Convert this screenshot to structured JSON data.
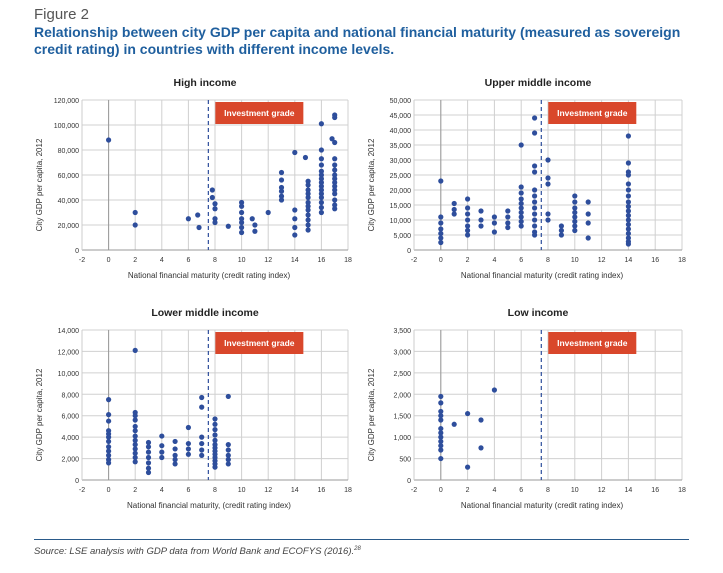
{
  "figure_label": "Figure 2",
  "title": "Relationship between city GDP per capita and national financial maturity (measured as sovereign credit rating) in countries with different income levels.",
  "source": "Source: LSE analysis with GDP data from World Bank and ECOFYS (2016).",
  "source_note": "28",
  "colors": {
    "point": "#2e4e9c",
    "grid": "#d0d0d0",
    "badge": "#d9472b",
    "dash": "#2e4e9c"
  },
  "chart_data": [
    {
      "type": "scatter",
      "title": "High income",
      "xlabel": "National financial maturity (credit rating index)",
      "ylabel": "City GDP per capita, 2012",
      "xlim": [
        -2,
        18
      ],
      "ylim": [
        0,
        120000
      ],
      "xticks": [
        -2,
        0,
        2,
        4,
        6,
        8,
        10,
        12,
        14,
        16,
        18
      ],
      "yticks": [
        "0",
        "20,000",
        "40,000",
        "60,000",
        "80,000",
        "100,000",
        "120,000"
      ],
      "ytick_values": [
        0,
        20000,
        40000,
        60000,
        80000,
        100000,
        120000
      ],
      "threshold_x": 7.5,
      "threshold_label": "Investment grade",
      "points": [
        [
          0,
          88000
        ],
        [
          2,
          30000
        ],
        [
          2,
          20000
        ],
        [
          6,
          25000
        ],
        [
          6.7,
          28000
        ],
        [
          6.8,
          18000
        ],
        [
          7.8,
          48000
        ],
        [
          7.8,
          42000
        ],
        [
          8,
          37000
        ],
        [
          8,
          33000
        ],
        [
          8,
          25000
        ],
        [
          8,
          22000
        ],
        [
          9,
          19000
        ],
        [
          10,
          38000
        ],
        [
          10,
          35000
        ],
        [
          10,
          30000
        ],
        [
          10,
          25000
        ],
        [
          10,
          22000
        ],
        [
          10,
          18000
        ],
        [
          10,
          14000
        ],
        [
          10.8,
          25000
        ],
        [
          11,
          20000
        ],
        [
          11,
          15000
        ],
        [
          12,
          30000
        ],
        [
          13,
          62000
        ],
        [
          13,
          56000
        ],
        [
          13,
          50000
        ],
        [
          13,
          47000
        ],
        [
          13,
          43000
        ],
        [
          13,
          40000
        ],
        [
          14,
          78000
        ],
        [
          14,
          32000
        ],
        [
          14,
          25000
        ],
        [
          14,
          18000
        ],
        [
          14,
          12000
        ],
        [
          14.8,
          74000
        ],
        [
          15,
          55000
        ],
        [
          15,
          52000
        ],
        [
          15,
          48000
        ],
        [
          15,
          45000
        ],
        [
          15,
          42000
        ],
        [
          15,
          38000
        ],
        [
          15,
          35000
        ],
        [
          15,
          32000
        ],
        [
          15,
          28000
        ],
        [
          15,
          24000
        ],
        [
          15,
          20000
        ],
        [
          15,
          16000
        ],
        [
          16,
          101000
        ],
        [
          16,
          80000
        ],
        [
          16,
          73000
        ],
        [
          16,
          68000
        ],
        [
          16,
          63000
        ],
        [
          16,
          60000
        ],
        [
          16,
          57000
        ],
        [
          16,
          54000
        ],
        [
          16,
          51000
        ],
        [
          16,
          48000
        ],
        [
          16,
          45000
        ],
        [
          16,
          42000
        ],
        [
          16,
          38000
        ],
        [
          16,
          34000
        ],
        [
          16,
          30000
        ],
        [
          16.8,
          89000
        ],
        [
          17,
          108000
        ],
        [
          17,
          106000
        ],
        [
          17,
          86000
        ],
        [
          17,
          73000
        ],
        [
          17,
          68000
        ],
        [
          17,
          64000
        ],
        [
          17,
          60000
        ],
        [
          17,
          57000
        ],
        [
          17,
          54000
        ],
        [
          17,
          51000
        ],
        [
          17,
          48000
        ],
        [
          17,
          45000
        ],
        [
          17,
          40000
        ],
        [
          17,
          36000
        ],
        [
          17,
          33000
        ]
      ]
    },
    {
      "type": "scatter",
      "title": "Upper middle income",
      "xlabel": "National financial maturity (credit rating index)",
      "ylabel": "City GDP per capita, 2012",
      "xlim": [
        -2,
        18
      ],
      "ylim": [
        0,
        50000
      ],
      "xticks": [
        -2,
        0,
        2,
        4,
        6,
        8,
        10,
        12,
        14,
        16,
        18
      ],
      "yticks": [
        "0",
        "5,000",
        "10,000",
        "15,000",
        "20,000",
        "25,000",
        "30,000",
        "35,000",
        "40,000",
        "45,000",
        "50,000"
      ],
      "ytick_values": [
        0,
        5000,
        10000,
        15000,
        20000,
        25000,
        30000,
        35000,
        40000,
        45000,
        50000
      ],
      "threshold_x": 7.5,
      "threshold_label": "Investment grade",
      "points": [
        [
          0,
          23000
        ],
        [
          0,
          11000
        ],
        [
          0,
          9000
        ],
        [
          0,
          7000
        ],
        [
          0,
          5500
        ],
        [
          0,
          4000
        ],
        [
          0,
          2500
        ],
        [
          1,
          15500
        ],
        [
          1,
          13500
        ],
        [
          1,
          12000
        ],
        [
          2,
          17000
        ],
        [
          2,
          14000
        ],
        [
          2,
          12000
        ],
        [
          2,
          10000
        ],
        [
          2,
          8000
        ],
        [
          2,
          6500
        ],
        [
          2,
          5000
        ],
        [
          3,
          13000
        ],
        [
          3,
          10000
        ],
        [
          3,
          8000
        ],
        [
          4,
          11000
        ],
        [
          4,
          9000
        ],
        [
          4,
          6000
        ],
        [
          5,
          13000
        ],
        [
          5,
          11000
        ],
        [
          5,
          9000
        ],
        [
          5,
          7500
        ],
        [
          6,
          35000
        ],
        [
          6,
          21000
        ],
        [
          6,
          19000
        ],
        [
          6,
          17000
        ],
        [
          6,
          15500
        ],
        [
          6,
          14000
        ],
        [
          6,
          12500
        ],
        [
          6,
          11000
        ],
        [
          6,
          9500
        ],
        [
          6,
          8000
        ],
        [
          7,
          44000
        ],
        [
          7,
          39000
        ],
        [
          7,
          28000
        ],
        [
          7,
          26000
        ],
        [
          7,
          20000
        ],
        [
          7,
          18000
        ],
        [
          7,
          16000
        ],
        [
          7,
          14000
        ],
        [
          7,
          12000
        ],
        [
          7,
          10000
        ],
        [
          7,
          8000
        ],
        [
          7,
          6000
        ],
        [
          7,
          5000
        ],
        [
          8,
          30000
        ],
        [
          8,
          24000
        ],
        [
          8,
          22000
        ],
        [
          8,
          12000
        ],
        [
          8,
          10000
        ],
        [
          9,
          8000
        ],
        [
          9,
          6500
        ],
        [
          9,
          5000
        ],
        [
          10,
          18000
        ],
        [
          10,
          16000
        ],
        [
          10,
          14000
        ],
        [
          10,
          12500
        ],
        [
          10,
          11000
        ],
        [
          10,
          9500
        ],
        [
          10,
          8000
        ],
        [
          10,
          6500
        ],
        [
          11,
          16000
        ],
        [
          11,
          12000
        ],
        [
          11,
          9000
        ],
        [
          11,
          4000
        ],
        [
          14,
          38000
        ],
        [
          14,
          29000
        ],
        [
          14,
          26000
        ],
        [
          14,
          25000
        ],
        [
          14,
          22000
        ],
        [
          14,
          20000
        ],
        [
          14,
          18000
        ],
        [
          14,
          16000
        ],
        [
          14,
          14500
        ],
        [
          14,
          13000
        ],
        [
          14,
          11500
        ],
        [
          14,
          10000
        ],
        [
          14,
          8500
        ],
        [
          14,
          7000
        ],
        [
          14,
          5500
        ],
        [
          14,
          4000
        ],
        [
          14,
          2800
        ],
        [
          14,
          2000
        ]
      ]
    },
    {
      "type": "scatter",
      "title": "Lower middle income",
      "xlabel": "National financial maturity, (credit rating index)",
      "ylabel": "City GDP per capita, 2012",
      "xlim": [
        -2,
        18
      ],
      "ylim": [
        0,
        14000
      ],
      "xticks": [
        -2,
        0,
        2,
        4,
        6,
        8,
        10,
        12,
        14,
        16,
        18
      ],
      "yticks": [
        "0",
        "2,000",
        "4,000",
        "6,000",
        "8,000",
        "10,000",
        "12,000",
        "14,000"
      ],
      "ytick_values": [
        0,
        2000,
        4000,
        6000,
        8000,
        10000,
        12000,
        14000
      ],
      "threshold_x": 7.5,
      "threshold_label": "Investment grade",
      "points": [
        [
          0,
          7500
        ],
        [
          0,
          6100
        ],
        [
          0,
          5500
        ],
        [
          0,
          4600
        ],
        [
          0,
          4300
        ],
        [
          0,
          4000
        ],
        [
          0,
          3600
        ],
        [
          0,
          3100
        ],
        [
          0,
          2700
        ],
        [
          0,
          2300
        ],
        [
          0,
          1900
        ],
        [
          0,
          1600
        ],
        [
          2,
          12100
        ],
        [
          2,
          6300
        ],
        [
          2,
          6000
        ],
        [
          2,
          5600
        ],
        [
          2,
          5000
        ],
        [
          2,
          4600
        ],
        [
          2,
          4100
        ],
        [
          2,
          3700
        ],
        [
          2,
          3300
        ],
        [
          2,
          2900
        ],
        [
          2,
          2500
        ],
        [
          2,
          2100
        ],
        [
          2,
          1700
        ],
        [
          3,
          3500
        ],
        [
          3,
          3100
        ],
        [
          3,
          2600
        ],
        [
          3,
          2100
        ],
        [
          3,
          1600
        ],
        [
          3,
          1100
        ],
        [
          3,
          700
        ],
        [
          4,
          4100
        ],
        [
          4,
          3200
        ],
        [
          4,
          2600
        ],
        [
          4,
          2100
        ],
        [
          5,
          3600
        ],
        [
          5,
          2900
        ],
        [
          5,
          2300
        ],
        [
          5,
          1900
        ],
        [
          5,
          1500
        ],
        [
          6,
          4900
        ],
        [
          6,
          3400
        ],
        [
          6,
          2900
        ],
        [
          6,
          2400
        ],
        [
          7,
          7700
        ],
        [
          7,
          6800
        ],
        [
          7,
          4000
        ],
        [
          7,
          3400
        ],
        [
          7,
          2800
        ],
        [
          7,
          2300
        ],
        [
          8,
          5700
        ],
        [
          8,
          5200
        ],
        [
          8,
          4700
        ],
        [
          8,
          4200
        ],
        [
          8,
          3700
        ],
        [
          8,
          3300
        ],
        [
          8,
          3000
        ],
        [
          8,
          2700
        ],
        [
          8,
          2400
        ],
        [
          8,
          2100
        ],
        [
          8,
          1800
        ],
        [
          8,
          1500
        ],
        [
          8,
          1200
        ],
        [
          9,
          7800
        ],
        [
          9,
          3300
        ],
        [
          9,
          2800
        ],
        [
          9,
          2300
        ],
        [
          9,
          1900
        ],
        [
          9,
          1500
        ]
      ]
    },
    {
      "type": "scatter",
      "title": "Low income",
      "xlabel": "National financial maturity (credit rating index)",
      "ylabel": "City GDP per capita, 2012",
      "xlim": [
        -2,
        18
      ],
      "ylim": [
        0,
        3500
      ],
      "xticks": [
        -2,
        0,
        2,
        4,
        6,
        8,
        10,
        12,
        14,
        16,
        18
      ],
      "yticks": [
        "0",
        "500",
        "1,000",
        "1,500",
        "2,000",
        "2,500",
        "3,000",
        "3,500"
      ],
      "ytick_values": [
        0,
        500,
        1000,
        1500,
        2000,
        2500,
        3000,
        3500
      ],
      "threshold_x": 7.5,
      "threshold_label": "Investment grade",
      "points": [
        [
          0,
          1950
        ],
        [
          0,
          1800
        ],
        [
          0,
          1600
        ],
        [
          0,
          1500
        ],
        [
          0,
          1400
        ],
        [
          0,
          1200
        ],
        [
          0,
          1100
        ],
        [
          0,
          1000
        ],
        [
          0,
          900
        ],
        [
          0,
          800
        ],
        [
          0,
          700
        ],
        [
          0,
          500
        ],
        [
          1,
          1300
        ],
        [
          2,
          1550
        ],
        [
          2,
          300
        ],
        [
          3,
          1400
        ],
        [
          3,
          750
        ],
        [
          4,
          2100
        ]
      ]
    }
  ]
}
